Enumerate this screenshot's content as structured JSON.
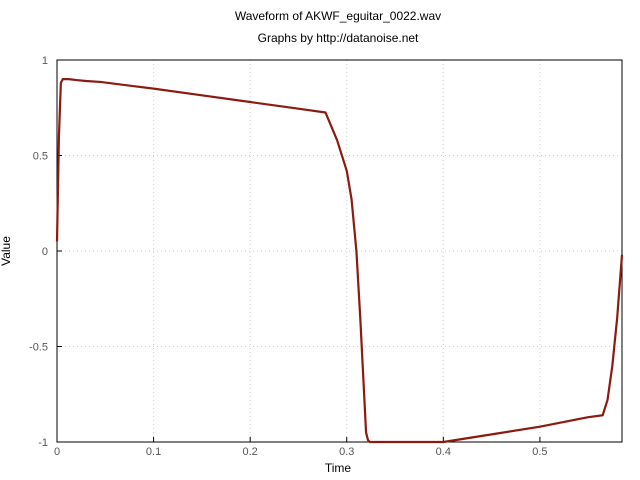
{
  "chart_data": {
    "type": "line",
    "title": "Waveform of AKWF_eguitar_0022.wav",
    "subtitle": "Graphs by http://datanoise.net",
    "xlabel": "Time",
    "ylabel": "Value",
    "xlim": [
      0,
      0.585
    ],
    "ylim": [
      -1,
      1
    ],
    "xticks": [
      "0",
      "0.1",
      "0.2",
      "0.3",
      "0.4",
      "0.5"
    ],
    "xtick_values": [
      0,
      0.1,
      0.2,
      0.3,
      0.4,
      0.5
    ],
    "yticks": [
      "1",
      "0.5",
      "0",
      "-0.5",
      "-1"
    ],
    "ytick_values": [
      1,
      0.5,
      0,
      -0.5,
      -1
    ],
    "grid": true,
    "line_color": "#8b1a10",
    "series": [
      {
        "x": [
          0,
          0.002,
          0.004,
          0.006,
          0.008,
          0.012,
          0.02,
          0.03,
          0.045,
          0.1,
          0.15,
          0.2,
          0.25,
          0.278,
          0.29,
          0.3,
          0.305,
          0.31,
          0.314,
          0.318,
          0.32,
          0.322,
          0.324,
          0.326,
          0.33,
          0.34,
          0.36,
          0.38,
          0.4,
          0.45,
          0.5,
          0.54,
          0.55,
          0.565,
          0.57,
          0.575,
          0.58,
          0.585
        ],
        "y": [
          0.05,
          0.6,
          0.88,
          0.9,
          0.9,
          0.9,
          0.895,
          0.89,
          0.885,
          0.85,
          0.815,
          0.78,
          0.745,
          0.725,
          0.58,
          0.42,
          0.27,
          0.0,
          -0.35,
          -0.75,
          -0.95,
          -0.99,
          -1.0,
          -1.0,
          -1.0,
          -1.0,
          -1.0,
          -1.0,
          -1.0,
          -0.96,
          -0.92,
          -0.88,
          -0.87,
          -0.86,
          -0.78,
          -0.6,
          -0.35,
          -0.02
        ]
      }
    ]
  }
}
